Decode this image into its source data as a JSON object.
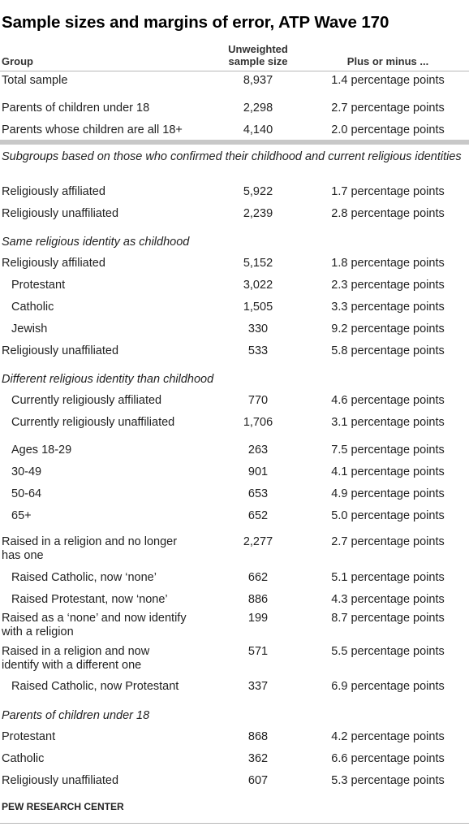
{
  "title": "Sample sizes and margins of error, ATP Wave 170",
  "columns": {
    "group": "Group",
    "n_line1": "Unweighted",
    "n_line2": "sample size",
    "moe": "Plus or minus ..."
  },
  "rows_top": [
    {
      "group": "Total sample",
      "n": "8,937",
      "moe": "1.4 percentage points"
    },
    {
      "group": "Parents of children under 18",
      "n": "2,298",
      "moe": "2.7 percentage points"
    },
    {
      "group": "Parents whose children are all 18+",
      "n": "4,140",
      "moe": "2.0 percentage points"
    }
  ],
  "subgroups_note": "Subgroups based on those who confirmed their childhood and current religious identities",
  "rows_confirmed": [
    {
      "group": "Religiously affiliated",
      "n": "5,922",
      "moe": "1.7 percentage points"
    },
    {
      "group": "Religiously unaffiliated",
      "n": "2,239",
      "moe": "2.8 percentage points"
    }
  ],
  "section_same": "Same religious identity as childhood",
  "rows_same": [
    {
      "group": "Religiously affiliated",
      "n": "5,152",
      "moe": "1.8 percentage points"
    },
    {
      "group": "Protestant",
      "n": "3,022",
      "moe": "2.3 percentage points"
    },
    {
      "group": "Catholic",
      "n": "1,505",
      "moe": "3.3 percentage points"
    },
    {
      "group": "Jewish",
      "n": "330",
      "moe": "9.2 percentage points"
    },
    {
      "group": "Religiously unaffiliated",
      "n": "533",
      "moe": "5.8 percentage points"
    }
  ],
  "section_different": "Different religious identity than childhood",
  "rows_different": [
    {
      "group": "Currently religiously affiliated",
      "n": "770",
      "moe": "4.6 percentage points"
    },
    {
      "group": "Currently religiously unaffiliated",
      "n": "1,706",
      "moe": "3.1 percentage points"
    },
    {
      "group": "Ages 18-29",
      "n": "263",
      "moe": "7.5 percentage points"
    },
    {
      "group": "30-49",
      "n": "901",
      "moe": "4.1 percentage points"
    },
    {
      "group": "50-64",
      "n": "653",
      "moe": "4.9 percentage points"
    },
    {
      "group": "65+",
      "n": "652",
      "moe": "5.0 percentage points"
    },
    {
      "group_line1": "Raised in a religion and no longer",
      "group_line2": "has one",
      "n": "2,277",
      "moe": "2.7 percentage points"
    },
    {
      "group": "Raised Catholic, now ‘none’",
      "n": "662",
      "moe": "5.1 percentage points"
    },
    {
      "group": "Raised Protestant, now ‘none’",
      "n": "886",
      "moe": "4.3 percentage points"
    },
    {
      "group_line1": "Raised as a ‘none’ and now identify",
      "group_line2": "with a religion",
      "n": "199",
      "moe": "8.7 percentage points"
    },
    {
      "group_line1": "Raised in a religion and now",
      "group_line2": "identify with a different one",
      "n": "571",
      "moe": "5.5 percentage points"
    },
    {
      "group": "Raised Catholic, now Protestant",
      "n": "337",
      "moe": "6.9 percentage points"
    }
  ],
  "section_parents": "Parents of children under 18",
  "rows_parents": [
    {
      "group": "Protestant",
      "n": "868",
      "moe": "4.2 percentage points"
    },
    {
      "group": "Catholic",
      "n": "362",
      "moe": "6.6 percentage points"
    },
    {
      "group": "Religiously unaffiliated",
      "n": "607",
      "moe": "5.3 percentage points"
    }
  ],
  "footer": "PEW RESEARCH CENTER"
}
